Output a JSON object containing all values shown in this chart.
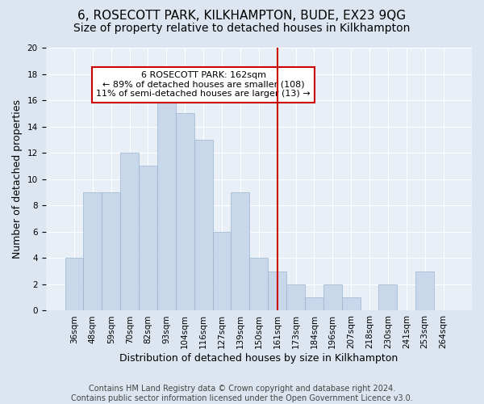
{
  "title": "6, ROSECOTT PARK, KILKHAMPTON, BUDE, EX23 9QG",
  "subtitle": "Size of property relative to detached houses in Kilkhampton",
  "xlabel": "Distribution of detached houses by size in Kilkhampton",
  "ylabel": "Number of detached properties",
  "categories": [
    "36sqm",
    "48sqm",
    "59sqm",
    "70sqm",
    "82sqm",
    "93sqm",
    "104sqm",
    "116sqm",
    "127sqm",
    "139sqm",
    "150sqm",
    "161sqm",
    "173sqm",
    "184sqm",
    "196sqm",
    "207sqm",
    "218sqm",
    "230sqm",
    "241sqm",
    "253sqm",
    "264sqm"
  ],
  "values": [
    4,
    9,
    9,
    12,
    11,
    16,
    15,
    13,
    6,
    9,
    4,
    3,
    2,
    1,
    2,
    1,
    0,
    2,
    0,
    3,
    0
  ],
  "bar_color": "#c8d8ea",
  "bar_edgecolor": "#9ab4cc",
  "vline_color": "#cc0000",
  "vline_position": 11.5,
  "annotation_text": "6 ROSECOTT PARK: 162sqm\n← 89% of detached houses are smaller (108)\n11% of semi-detached houses are larger (13) →",
  "annotation_box_facecolor": "#ffffff",
  "annotation_box_edgecolor": "#cc0000",
  "ylim": [
    0,
    20
  ],
  "yticks": [
    0,
    2,
    4,
    6,
    8,
    10,
    12,
    14,
    16,
    18,
    20
  ],
  "footer": "Contains HM Land Registry data © Crown copyright and database right 2024.\nContains public sector information licensed under the Open Government Licence v3.0.",
  "background_color": "#dde6f0",
  "plot_background_color": "#e8eff7",
  "title_fontsize": 11,
  "subtitle_fontsize": 10,
  "axis_label_fontsize": 9,
  "tick_fontsize": 7.5,
  "footer_fontsize": 7,
  "annotation_fontsize": 8
}
